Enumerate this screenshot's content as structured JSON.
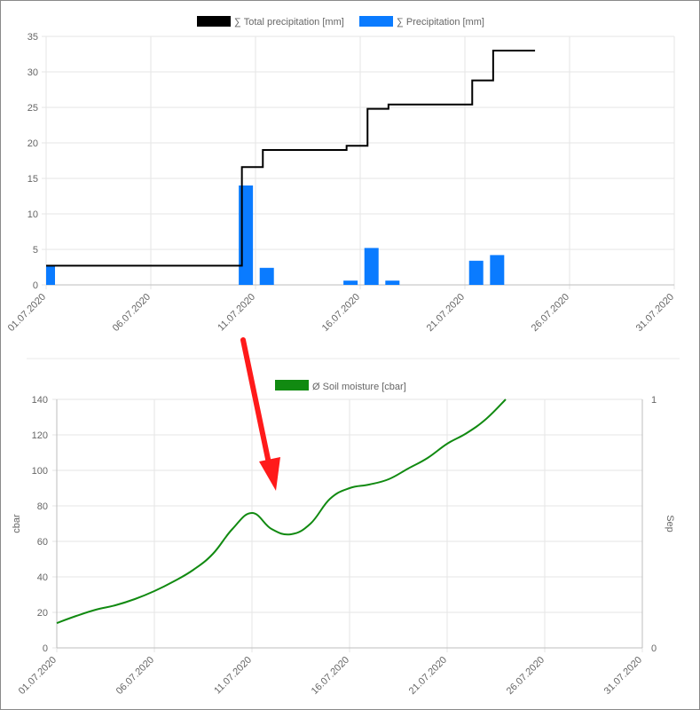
{
  "chart_data": [
    {
      "type": "bar",
      "x_type": "date",
      "x_ticks": [
        "01.07.2020",
        "06.07.2020",
        "11.07.2020",
        "16.07.2020",
        "21.07.2020",
        "26.07.2020",
        "31.07.2020"
      ],
      "xlim": [
        "01.07.2020",
        "31.07.2020"
      ],
      "ylim": [
        0,
        35
      ],
      "y_ticks": [
        0,
        5,
        10,
        15,
        20,
        25,
        30,
        35
      ],
      "grid": true,
      "legend_position": "top",
      "series": [
        {
          "name": "∑ Total precipitation [mm]",
          "type": "line",
          "style": "step",
          "color": "#000000",
          "points": [
            {
              "x": "01.07.2020",
              "y": 2.7
            },
            {
              "x": "10.07.2020",
              "y": 16.6
            },
            {
              "x": "11.07.2020",
              "y": 19.0
            },
            {
              "x": "15.07.2020",
              "y": 19.6
            },
            {
              "x": "16.07.2020",
              "y": 24.8
            },
            {
              "x": "17.07.2020",
              "y": 25.4
            },
            {
              "x": "21.07.2020",
              "y": 28.8
            },
            {
              "x": "22.07.2020",
              "y": 33.0
            },
            {
              "x": "24.07.2020",
              "y": 33.0
            }
          ]
        },
        {
          "name": "∑ Precipitation [mm]",
          "type": "bar",
          "color": "#0a7bff",
          "points": [
            {
              "x": "01.07.2020",
              "y": 2.7
            },
            {
              "x": "10.07.2020",
              "y": 14.0
            },
            {
              "x": "11.07.2020",
              "y": 2.4
            },
            {
              "x": "15.07.2020",
              "y": 0.6
            },
            {
              "x": "16.07.2020",
              "y": 5.2
            },
            {
              "x": "17.07.2020",
              "y": 0.6
            },
            {
              "x": "21.07.2020",
              "y": 3.4
            },
            {
              "x": "22.07.2020",
              "y": 4.2
            }
          ]
        }
      ]
    },
    {
      "type": "line",
      "x_type": "date",
      "x_ticks": [
        "01.07.2020",
        "06.07.2020",
        "11.07.2020",
        "16.07.2020",
        "21.07.2020",
        "26.07.2020",
        "31.07.2020"
      ],
      "xlim": [
        "01.07.2020",
        "31.07.2020"
      ],
      "ylim": [
        0,
        140
      ],
      "y_ticks": [
        0,
        20,
        40,
        60,
        80,
        100,
        120,
        140
      ],
      "ylabel": "cbar",
      "y2label": "Sep",
      "y2_ticks": [
        0,
        1
      ],
      "grid": true,
      "legend_position": "top",
      "series": [
        {
          "name": "Ø Soil moisture [cbar]",
          "color": "#118a11",
          "points": [
            {
              "x": "01.07.2020",
              "y": 14
            },
            {
              "x": "02.07.2020",
              "y": 18
            },
            {
              "x": "03.07.2020",
              "y": 21.5
            },
            {
              "x": "04.07.2020",
              "y": 24
            },
            {
              "x": "05.07.2020",
              "y": 27.5
            },
            {
              "x": "06.07.2020",
              "y": 32
            },
            {
              "x": "07.07.2020",
              "y": 37.5
            },
            {
              "x": "08.07.2020",
              "y": 44
            },
            {
              "x": "09.07.2020",
              "y": 53
            },
            {
              "x": "10.07.2020",
              "y": 67
            },
            {
              "x": "11.07.2020",
              "y": 76
            },
            {
              "x": "12.07.2020",
              "y": 67
            },
            {
              "x": "13.07.2020",
              "y": 64
            },
            {
              "x": "14.07.2020",
              "y": 70
            },
            {
              "x": "15.07.2020",
              "y": 84
            },
            {
              "x": "16.07.2020",
              "y": 90
            },
            {
              "x": "17.07.2020",
              "y": 92
            },
            {
              "x": "18.07.2020",
              "y": 95
            },
            {
              "x": "19.07.2020",
              "y": 101
            },
            {
              "x": "20.07.2020",
              "y": 107
            },
            {
              "x": "21.07.2020",
              "y": 115
            },
            {
              "x": "22.07.2020",
              "y": 121
            },
            {
              "x": "23.07.2020",
              "y": 129
            },
            {
              "x": "24.07.2020",
              "y": 140
            }
          ]
        }
      ]
    }
  ],
  "annotation": {
    "type": "arrow",
    "color": "#ff1a1a"
  }
}
